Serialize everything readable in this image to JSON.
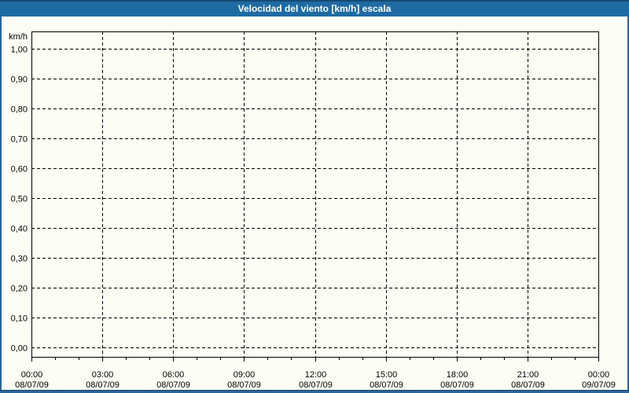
{
  "window": {
    "title": "Velocidad del viento [km/h] escala"
  },
  "colors": {
    "titlebar_bg": "#1e6ba3",
    "titlebar_text": "#ffffff",
    "window_border": "#2e6396",
    "window_border_dark": "#174a72",
    "background": "#fcfef5",
    "grid_line": "#000000",
    "axis_line": "#000000",
    "label_text": "#000000"
  },
  "chart_data": {
    "type": "line",
    "title": "Velocidad del viento [km/h] escala",
    "ylabel": "km/h",
    "xlabel": "",
    "ylim": [
      0.0,
      1.0
    ],
    "y_tick_step": 0.1,
    "y_ticks": [
      {
        "label": "1,00",
        "value": 1.0
      },
      {
        "label": "0,90",
        "value": 0.9
      },
      {
        "label": "0,80",
        "value": 0.8
      },
      {
        "label": "0,70",
        "value": 0.7
      },
      {
        "label": "0,60",
        "value": 0.6
      },
      {
        "label": "0,50",
        "value": 0.5
      },
      {
        "label": "0,40",
        "value": 0.4
      },
      {
        "label": "0,30",
        "value": 0.3
      },
      {
        "label": "0,20",
        "value": 0.2
      },
      {
        "label": "0,10",
        "value": 0.1
      },
      {
        "label": "0,00",
        "value": 0.0
      }
    ],
    "x_ticks": [
      {
        "time": "00:00",
        "date": "08/07/09"
      },
      {
        "time": "03:00",
        "date": "08/07/09"
      },
      {
        "time": "06:00",
        "date": "08/07/09"
      },
      {
        "time": "09:00",
        "date": "08/07/09"
      },
      {
        "time": "12:00",
        "date": "08/07/09"
      },
      {
        "time": "15:00",
        "date": "08/07/09"
      },
      {
        "time": "18:00",
        "date": "08/07/09"
      },
      {
        "time": "21:00",
        "date": "08/07/09"
      },
      {
        "time": "00:00",
        "date": "09/07/09"
      }
    ],
    "x_minor_divisions": 3,
    "grid": true,
    "grid_style": "dashed",
    "legend": "none",
    "series": []
  }
}
